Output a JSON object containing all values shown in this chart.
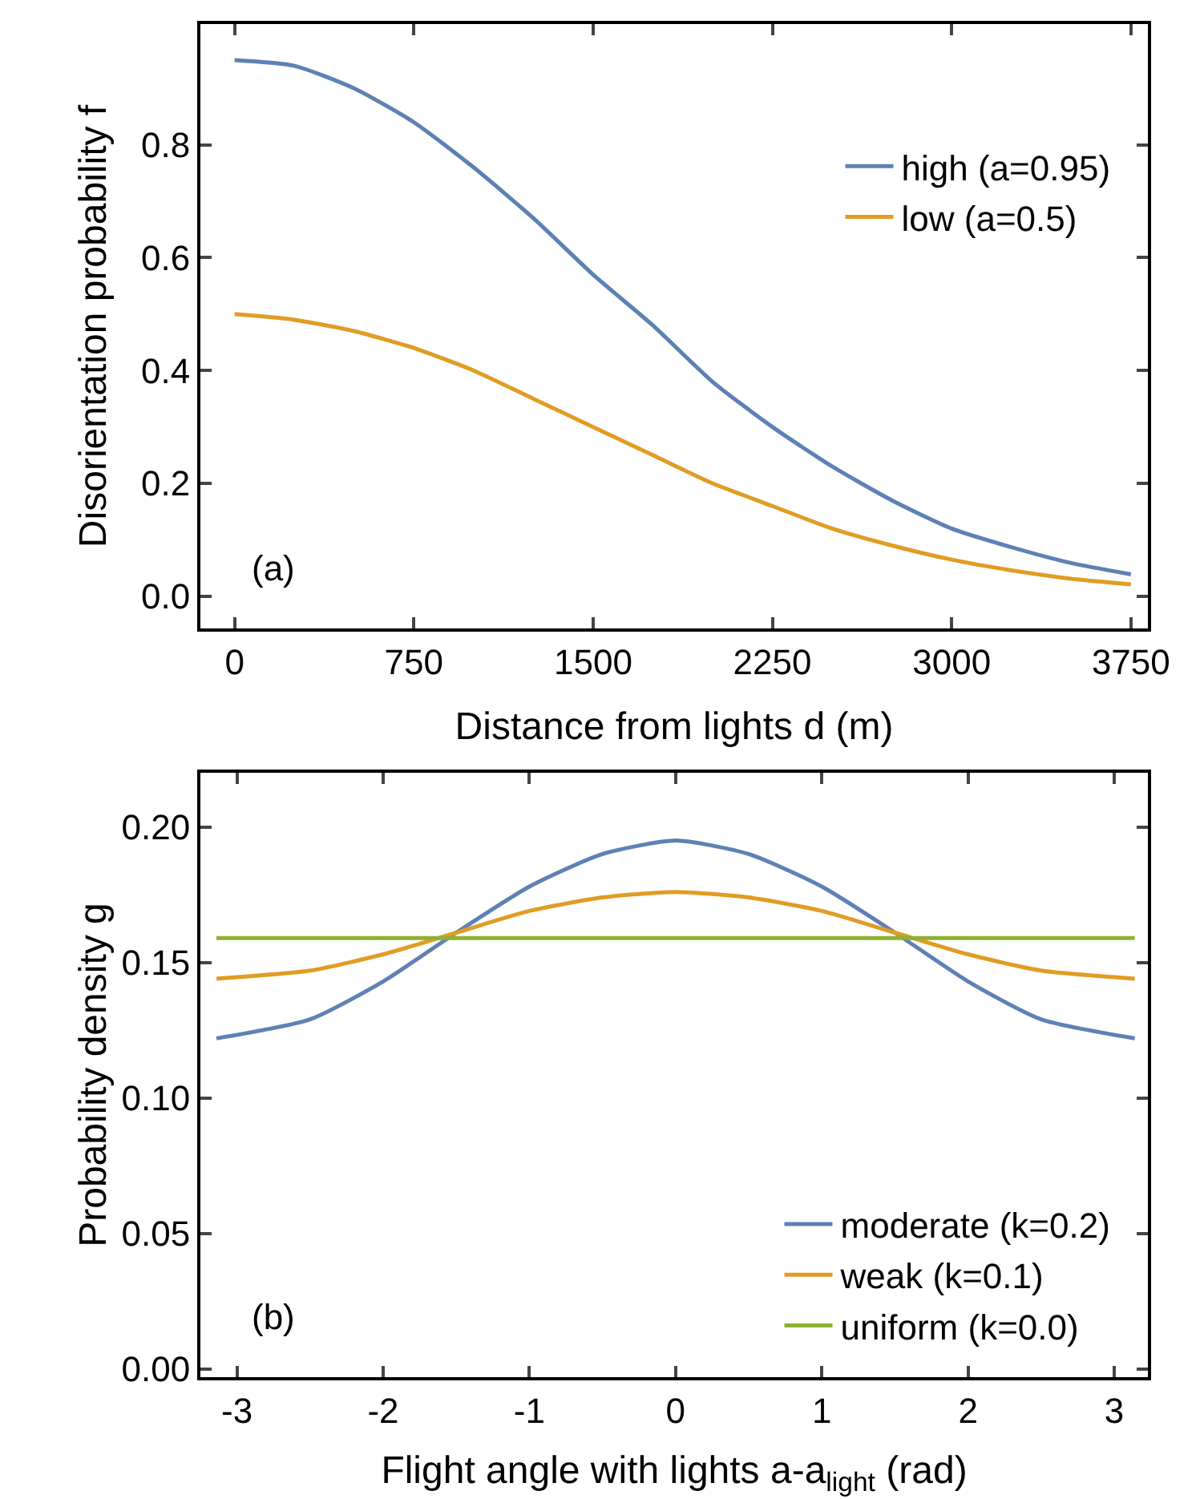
{
  "chart_data": [
    {
      "type": "line",
      "xlabel": "Distance from lights d (m)",
      "ylabel": "Disorientation probability f",
      "x": [
        0,
        250,
        500,
        750,
        1000,
        1250,
        1500,
        1750,
        2000,
        2250,
        2500,
        2750,
        3000,
        3250,
        3500,
        3750
      ],
      "xlim": [
        -143,
        3821
      ],
      "xticks": [
        0,
        750,
        1500,
        2250,
        3000,
        3750
      ],
      "ylim": [
        -0.057,
        1.014
      ],
      "yticks": [
        {
          "value": 0,
          "label": "0.0"
        },
        {
          "value": 0.2,
          "label": "0.2"
        },
        {
          "value": 0.4,
          "label": "0.4"
        },
        {
          "value": 0.6,
          "label": "0.6"
        },
        {
          "value": 0.8,
          "label": "0.8"
        }
      ],
      "grid": false,
      "legend": "top right",
      "marker": "none",
      "line_style": "solid",
      "annotations": [
        "(a)"
      ],
      "series": [
        {
          "name": "high (a=0.95)",
          "color": "#5e81b5",
          "values": [
            0.95,
            0.94,
            0.9,
            0.84,
            0.76,
            0.67,
            0.57,
            0.48,
            0.38,
            0.3,
            0.23,
            0.17,
            0.12,
            0.087,
            0.059,
            0.039
          ]
        },
        {
          "name": "low (a=0.5)",
          "color": "#e19c24",
          "values": [
            0.5,
            0.49,
            0.47,
            0.44,
            0.4,
            0.35,
            0.3,
            0.25,
            0.2,
            0.16,
            0.12,
            0.09,
            0.065,
            0.046,
            0.031,
            0.021
          ]
        }
      ]
    },
    {
      "type": "line",
      "xlabel": "Flight angle with lights a-a$_{light}$ (rad)",
      "ylabel": "Probability density g",
      "x": [
        -3.14,
        -2.5,
        -2,
        -1.5,
        -1,
        -0.5,
        0,
        0.5,
        1,
        1.5,
        2,
        2.5,
        3.14
      ],
      "xlim": [
        -3.25,
        3.23
      ],
      "xticks": [
        -3,
        -2,
        -1,
        0,
        1,
        2,
        3
      ],
      "ylim": [
        -0.003,
        0.22
      ],
      "yticks": [
        {
          "value": 0,
          "label": "0.00"
        },
        {
          "value": 0.05,
          "label": "0.05"
        },
        {
          "value": 0.1,
          "label": "0.10"
        },
        {
          "value": 0.15,
          "label": "0.15"
        },
        {
          "value": 0.2,
          "label": "0.20"
        }
      ],
      "grid": false,
      "legend": "bottom right",
      "marker": "none",
      "line_style": "solid",
      "annotations": [
        "(b)"
      ],
      "series": [
        {
          "name": "moderate (k=0.2)",
          "color": "#5e81b5",
          "values": [
            0.122,
            0.129,
            0.143,
            0.161,
            0.178,
            0.19,
            0.195,
            0.19,
            0.178,
            0.161,
            0.143,
            0.129,
            0.122
          ]
        },
        {
          "name": "weak (k=0.1)",
          "color": "#e19c24",
          "values": [
            0.144,
            0.147,
            0.153,
            0.161,
            0.169,
            0.174,
            0.176,
            0.174,
            0.169,
            0.161,
            0.153,
            0.147,
            0.144
          ]
        },
        {
          "name": "uniform (k=0.0)",
          "color": "#8fb032",
          "values": [
            0.159,
            0.159,
            0.159,
            0.159,
            0.159,
            0.159,
            0.159,
            0.159,
            0.159,
            0.159,
            0.159,
            0.159,
            0.159
          ]
        }
      ]
    }
  ]
}
